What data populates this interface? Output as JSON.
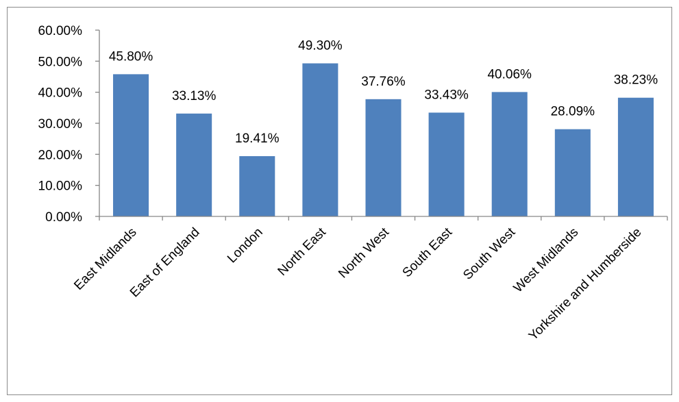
{
  "chart_data": {
    "type": "bar",
    "title": "",
    "xlabel": "",
    "ylabel": "",
    "categories": [
      "East Midlands",
      "East of England",
      "London",
      "North East",
      "North West",
      "South East",
      "South West",
      "West Midlands",
      "Yorkshire and Humberside"
    ],
    "values": [
      45.8,
      33.13,
      19.41,
      49.3,
      37.76,
      33.43,
      40.06,
      28.09,
      38.23
    ],
    "data_labels": [
      "45.80%",
      "33.13%",
      "19.41%",
      "49.30%",
      "37.76%",
      "33.43%",
      "40.06%",
      "28.09%",
      "38.23%"
    ],
    "ylim": [
      0,
      60
    ],
    "yticks": [
      0,
      10,
      20,
      30,
      40,
      50,
      60
    ],
    "ytick_labels": [
      "0.00%",
      "10.00%",
      "20.00%",
      "30.00%",
      "40.00%",
      "50.00%",
      "60.00%"
    ],
    "bar_color": "#4f81bd",
    "axis_color": "#868686",
    "grid": false,
    "legend": "none"
  }
}
